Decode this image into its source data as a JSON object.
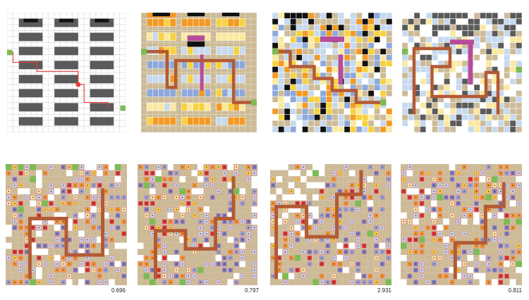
{
  "figure": {
    "rows": [
      {
        "panels": [
          {
            "variant": "floorplan",
            "seed": 1
          },
          {
            "variant": "program",
            "seed": 2
          },
          {
            "variant": "scatter",
            "seed": 3
          },
          {
            "variant": "sparse",
            "seed": 4
          }
        ]
      },
      {
        "panels": [
          {
            "variant": "cluster",
            "seed": 11,
            "score": "0.696"
          },
          {
            "variant": "cluster",
            "seed": 12,
            "score": "0.797"
          },
          {
            "variant": "cluster-open",
            "seed": 13,
            "score": "2.931"
          },
          {
            "variant": "cluster",
            "seed": 14,
            "score": "0.811"
          }
        ]
      }
    ]
  },
  "palette": {
    "grid_line": "#d9d9d9",
    "wall_dark": "#5a5a5a",
    "wall_black": "#111111",
    "tan": "#cdbb98",
    "path_brown": "#b35a34",
    "path_red": "#e5413a",
    "accent_purple": "#b64c9b",
    "entry_green": "#7dbb55",
    "orange": "#f39a24",
    "yellow": "#f7d23e",
    "pale_yellow": "#fbe9a0",
    "light_blue": "#c7d9ee",
    "mid_blue": "#8ea8da",
    "deep_blue": "#6f7fc8",
    "red": "#d7332a",
    "pink_outline": "#e07ea0"
  }
}
